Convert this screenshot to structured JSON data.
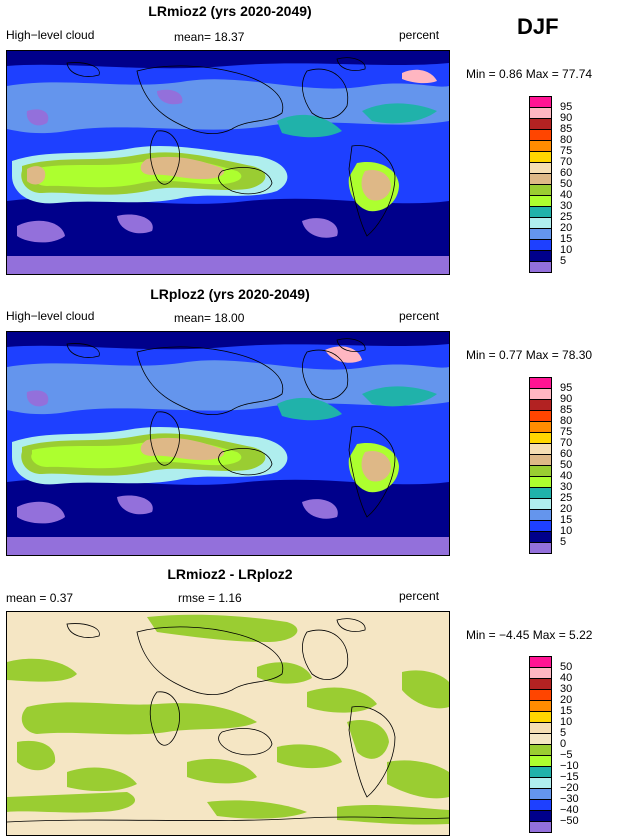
{
  "season": "DJF",
  "panels": [
    {
      "title": "LRmioz2 (yrs 2020-2049)",
      "left_label": "High−level cloud",
      "center_label": "mean=   18.37",
      "units": "percent",
      "stats": "Min =    0.86  Max =   77.74",
      "kind": "field",
      "colorbar": {
        "labels": [
          "95",
          "90",
          "85",
          "80",
          "75",
          "70",
          "60",
          "50",
          "40",
          "30",
          "25",
          "20",
          "15",
          "10",
          "5"
        ],
        "colors": [
          "#ff1493",
          "#ffb6c1",
          "#b22222",
          "#ff4500",
          "#ff8c00",
          "#ffd700",
          "#f5deb3",
          "#deb887",
          "#9acd32",
          "#adff2f",
          "#20b2aa",
          "#afeeee",
          "#6495ed",
          "#1e40ff",
          "#00008b",
          "#9370db"
        ]
      }
    },
    {
      "title": "LRploz2 (yrs 2020-2049)",
      "left_label": "High−level cloud",
      "center_label": "mean=   18.00",
      "units": "percent",
      "stats": "Min =    0.77  Max =   78.30",
      "kind": "field",
      "colorbar": {
        "labels": [
          "95",
          "90",
          "85",
          "80",
          "75",
          "70",
          "60",
          "50",
          "40",
          "30",
          "25",
          "20",
          "15",
          "10",
          "5"
        ],
        "colors": [
          "#ff1493",
          "#ffb6c1",
          "#b22222",
          "#ff4500",
          "#ff8c00",
          "#ffd700",
          "#f5deb3",
          "#deb887",
          "#9acd32",
          "#adff2f",
          "#20b2aa",
          "#afeeee",
          "#6495ed",
          "#1e40ff",
          "#00008b",
          "#9370db"
        ]
      }
    },
    {
      "title": "LRmioz2 - LRploz2",
      "left_label": "mean =    0.37",
      "center_label": "rmse =    1.16",
      "units": "percent",
      "stats": "Min =  −4.45  Max =    5.22",
      "kind": "diff",
      "colorbar": {
        "labels": [
          "50",
          "40",
          "30",
          "20",
          "15",
          "10",
          "5",
          "0",
          "−5",
          "−10",
          "−15",
          "−20",
          "−30",
          "−40",
          "−50"
        ],
        "colors": [
          "#ff1493",
          "#ffb6c1",
          "#b22222",
          "#ff4500",
          "#ff8c00",
          "#ffd700",
          "#f5deb3",
          "#f5e6c4",
          "#9acd32",
          "#adff2f",
          "#20b2aa",
          "#afeeee",
          "#6495ed",
          "#1e40ff",
          "#00008b",
          "#9370db"
        ]
      }
    }
  ]
}
